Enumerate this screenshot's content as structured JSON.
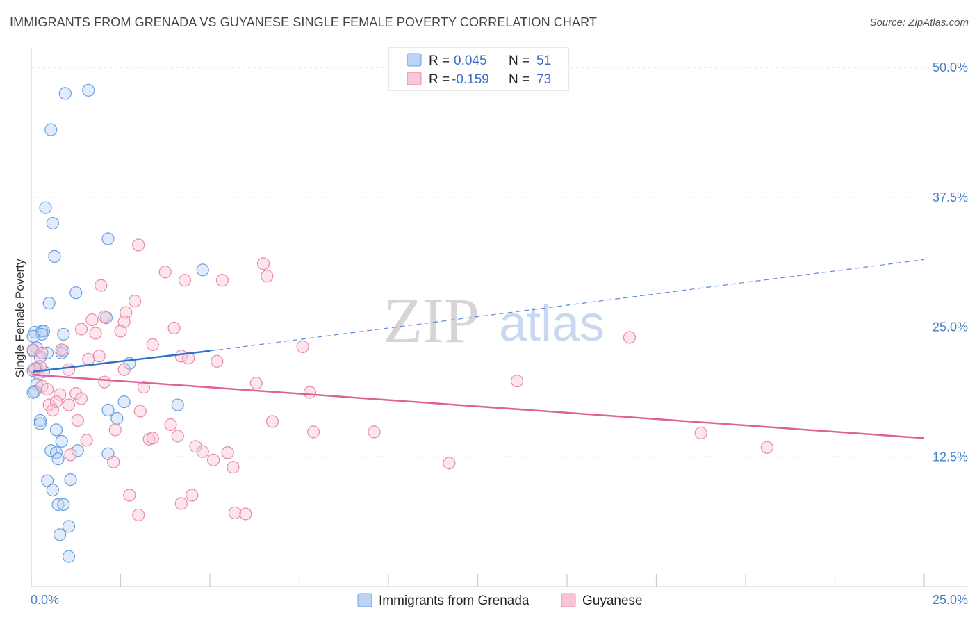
{
  "header": {
    "title": "IMMIGRANTS FROM GRENADA VS GUYANESE SINGLE FEMALE POVERTY CORRELATION CHART",
    "source": "Source: ZipAtlas.com"
  },
  "watermark": {
    "zip": "ZIP",
    "atlas": "atlas"
  },
  "colors": {
    "blue": "#6a9fe0",
    "blue_fill": "#bcd3f5",
    "blue_line": "#2f6fd1",
    "pink": "#e88aa8",
    "pink_fill": "#f8c6d5",
    "pink_line": "#e0609a",
    "axis_text": "#4a7fc8",
    "grid": "#dddddd"
  },
  "legend": {
    "rows": [
      {
        "r_label": "R =",
        "r_value": "0.045",
        "n_label": "N =",
        "n_value": "51"
      },
      {
        "r_label": "R =",
        "r_value": "-0.159",
        "n_label": "N =",
        "n_value": "73"
      }
    ]
  },
  "bottom_legend": {
    "series1": "Immigrants from Grenada",
    "series2": "Guyanese"
  },
  "chart_data": {
    "type": "scatter",
    "title": "IMMIGRANTS FROM GRENADA VS GUYANESE SINGLE FEMALE POVERTY CORRELATION CHART",
    "xlabel": "",
    "ylabel": "Single Female Poverty",
    "xlim": [
      0,
      25
    ],
    "ylim": [
      0,
      50
    ],
    "x_tick_labels": [
      "0.0%",
      "25.0%"
    ],
    "y_tick_labels": [
      "50.0%",
      "37.5%",
      "25.0%",
      "12.5%"
    ],
    "y_ticks": [
      50,
      37.5,
      25,
      12.5
    ],
    "grid": true,
    "legend_position": "top-center",
    "series": [
      {
        "name": "Immigrants from Grenada",
        "r": 0.045,
        "n": 51,
        "trend": {
          "solid": [
            [
              0.05,
              20.7
            ],
            [
              5.0,
              22.7
            ]
          ],
          "dashed": [
            [
              5.0,
              22.7
            ],
            [
              25.0,
              31.5
            ]
          ]
        },
        "points": [
          [
            0.95,
            47.5
          ],
          [
            1.6,
            47.8
          ],
          [
            0.55,
            44.0
          ],
          [
            0.4,
            36.5
          ],
          [
            0.6,
            35.0
          ],
          [
            2.15,
            33.5
          ],
          [
            0.65,
            31.8
          ],
          [
            4.8,
            30.5
          ],
          [
            1.25,
            28.3
          ],
          [
            0.5,
            27.3
          ],
          [
            2.1,
            25.9
          ],
          [
            0.1,
            24.5
          ],
          [
            0.3,
            24.6
          ],
          [
            0.35,
            24.6
          ],
          [
            0.3,
            24.3
          ],
          [
            0.9,
            24.3
          ],
          [
            0.05,
            24.1
          ],
          [
            0.15,
            23.0
          ],
          [
            0.05,
            22.7
          ],
          [
            0.45,
            22.5
          ],
          [
            0.85,
            22.5
          ],
          [
            0.9,
            22.7
          ],
          [
            0.25,
            22.1
          ],
          [
            2.75,
            21.5
          ],
          [
            0.15,
            21.0
          ],
          [
            0.05,
            20.8
          ],
          [
            0.35,
            20.7
          ],
          [
            0.15,
            19.5
          ],
          [
            0.1,
            18.8
          ],
          [
            2.6,
            17.8
          ],
          [
            4.1,
            17.5
          ],
          [
            2.15,
            17.0
          ],
          [
            2.4,
            16.2
          ],
          [
            0.25,
            16.0
          ],
          [
            0.25,
            15.7
          ],
          [
            0.7,
            15.1
          ],
          [
            0.85,
            14.0
          ],
          [
            0.55,
            13.1
          ],
          [
            1.3,
            13.1
          ],
          [
            0.7,
            12.9
          ],
          [
            2.15,
            12.8
          ],
          [
            0.75,
            12.3
          ],
          [
            0.45,
            10.2
          ],
          [
            1.1,
            10.3
          ],
          [
            0.6,
            9.3
          ],
          [
            0.75,
            7.9
          ],
          [
            0.9,
            7.9
          ],
          [
            1.05,
            5.8
          ],
          [
            0.8,
            5.0
          ],
          [
            1.05,
            2.9
          ],
          [
            0.05,
            18.7
          ]
        ]
      },
      {
        "name": "Guyanese",
        "r": -0.159,
        "n": 73,
        "trend": {
          "solid": [
            [
              0.05,
              20.4
            ],
            [
              25.0,
              14.3
            ]
          ]
        },
        "points": [
          [
            3.0,
            32.9
          ],
          [
            6.5,
            31.1
          ],
          [
            3.75,
            30.3
          ],
          [
            4.3,
            29.5
          ],
          [
            5.35,
            29.5
          ],
          [
            6.6,
            29.9
          ],
          [
            1.95,
            29.0
          ],
          [
            2.9,
            27.5
          ],
          [
            2.65,
            26.4
          ],
          [
            1.7,
            25.7
          ],
          [
            2.05,
            26.0
          ],
          [
            2.6,
            25.5
          ],
          [
            1.4,
            24.8
          ],
          [
            1.8,
            24.4
          ],
          [
            2.5,
            24.6
          ],
          [
            4.0,
            24.9
          ],
          [
            16.75,
            24.0
          ],
          [
            3.4,
            23.3
          ],
          [
            7.6,
            23.1
          ],
          [
            0.05,
            22.8
          ],
          [
            0.3,
            22.5
          ],
          [
            0.85,
            22.8
          ],
          [
            1.9,
            22.2
          ],
          [
            4.2,
            22.2
          ],
          [
            4.4,
            22.0
          ],
          [
            1.6,
            21.9
          ],
          [
            5.2,
            21.7
          ],
          [
            0.25,
            21.2
          ],
          [
            0.2,
            20.5
          ],
          [
            1.05,
            20.9
          ],
          [
            2.6,
            20.9
          ],
          [
            2.05,
            19.7
          ],
          [
            6.3,
            19.6
          ],
          [
            13.6,
            19.8
          ],
          [
            0.3,
            19.3
          ],
          [
            0.45,
            19.0
          ],
          [
            3.15,
            19.2
          ],
          [
            0.8,
            18.5
          ],
          [
            1.25,
            18.6
          ],
          [
            7.8,
            18.7
          ],
          [
            1.4,
            18.1
          ],
          [
            1.05,
            17.5
          ],
          [
            0.5,
            17.5
          ],
          [
            0.7,
            17.8
          ],
          [
            0.6,
            17.0
          ],
          [
            3.05,
            16.9
          ],
          [
            1.3,
            16.0
          ],
          [
            6.75,
            15.9
          ],
          [
            3.9,
            15.6
          ],
          [
            2.35,
            15.1
          ],
          [
            7.9,
            14.9
          ],
          [
            9.6,
            14.9
          ],
          [
            18.75,
            14.8
          ],
          [
            1.55,
            14.1
          ],
          [
            3.3,
            14.2
          ],
          [
            3.4,
            14.3
          ],
          [
            4.1,
            14.5
          ],
          [
            4.6,
            13.5
          ],
          [
            4.8,
            13.0
          ],
          [
            5.5,
            12.9
          ],
          [
            20.6,
            13.4
          ],
          [
            1.1,
            12.7
          ],
          [
            2.3,
            12.0
          ],
          [
            5.1,
            12.2
          ],
          [
            11.7,
            11.9
          ],
          [
            5.65,
            11.5
          ],
          [
            2.75,
            8.8
          ],
          [
            4.5,
            8.8
          ],
          [
            4.2,
            8.0
          ],
          [
            3.0,
            6.9
          ],
          [
            5.7,
            7.1
          ],
          [
            6.0,
            7.0
          ],
          [
            0.1,
            21.0
          ]
        ]
      }
    ]
  }
}
